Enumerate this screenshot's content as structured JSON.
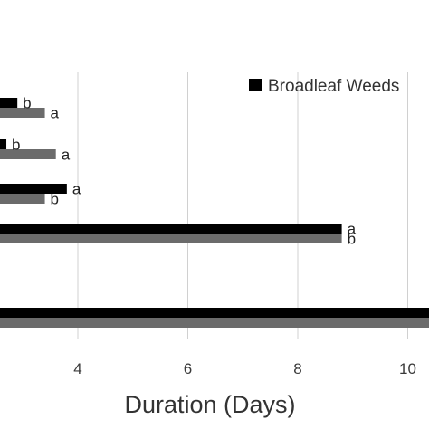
{
  "chart_data": {
    "type": "bar",
    "orientation": "horizontal",
    "xlabel": "Duration (Days)",
    "xlim": [
      0,
      10.6
    ],
    "xticks": [
      4,
      6,
      8,
      10
    ],
    "grid": "vertical",
    "legend_position": "top-right",
    "categories": [
      "",
      "",
      "",
      "",
      ""
    ],
    "series": [
      {
        "name": "Broadleaf Weeds",
        "color": "#000000",
        "values": [
          2.9,
          2.7,
          3.8,
          8.8,
          11.0
        ],
        "labels": [
          "b",
          "b",
          "a",
          "a",
          ""
        ]
      },
      {
        "name": "",
        "color": "#6b6b6b",
        "values": [
          3.4,
          3.6,
          3.4,
          8.8,
          11.0
        ],
        "labels": [
          "a",
          "a",
          "b",
          "b",
          ""
        ]
      }
    ]
  }
}
